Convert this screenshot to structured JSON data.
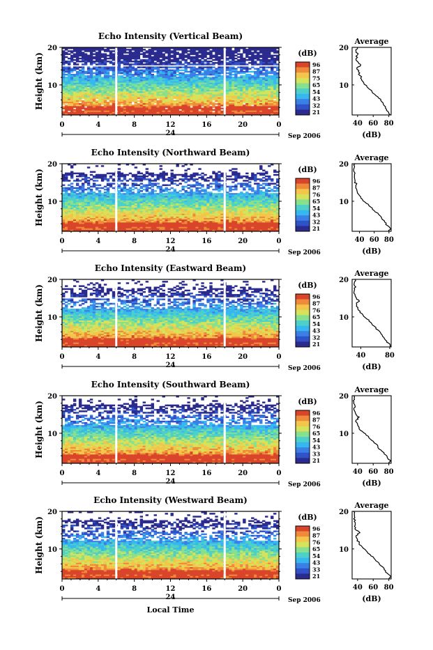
{
  "chart_data": [
    {
      "type": "heatmap",
      "title": "Echo Intensity (Vertical Beam)",
      "ylabel": "Height (km)",
      "xticks": [
        "0",
        "4",
        "8",
        "12",
        "16",
        "20",
        "0"
      ],
      "yticks": [
        "10",
        "20"
      ],
      "xlim": [
        0,
        24
      ],
      "ylim": [
        2,
        20
      ],
      "date_label": "24",
      "month_label": "Sep 2006",
      "colorbar": {
        "unit": "(dB)",
        "ticks": [
          "96",
          "87",
          "75",
          "65",
          "54",
          "43",
          "32",
          "21"
        ]
      },
      "gaps_hours": [
        6,
        18
      ],
      "average": {
        "title": "Average",
        "xlabel": "(dB)",
        "xticks": [
          "40",
          "60",
          "80"
        ],
        "xlim": [
          33,
          83
        ],
        "yticks": [
          "10",
          "20"
        ],
        "profile": [
          [
            82,
            2
          ],
          [
            80,
            2.6
          ],
          [
            77,
            3.5
          ],
          [
            74,
            4.5
          ],
          [
            71,
            5.5
          ],
          [
            67,
            6.5
          ],
          [
            62,
            7.5
          ],
          [
            58,
            8.5
          ],
          [
            52,
            9.5
          ],
          [
            48,
            10.5
          ],
          [
            45,
            11.5
          ],
          [
            43,
            12.5
          ],
          [
            41,
            13.5
          ],
          [
            39,
            14.5
          ],
          [
            44,
            15.2
          ],
          [
            41,
            16
          ],
          [
            38,
            17
          ],
          [
            40,
            18
          ],
          [
            38,
            19
          ],
          [
            40,
            20
          ]
        ]
      }
    },
    {
      "type": "heatmap",
      "title": "Echo Intensity (Northward Beam)",
      "ylabel": "Height (km)",
      "xticks": [
        "0",
        "4",
        "8",
        "12",
        "16",
        "20",
        "0"
      ],
      "yticks": [
        "10",
        "20"
      ],
      "xlim": [
        0,
        24
      ],
      "ylim": [
        2,
        20
      ],
      "date_label": "24",
      "month_label": "Sep 2006",
      "colorbar": {
        "unit": "(dB)",
        "ticks": [
          "96",
          "87",
          "76",
          "65",
          "54",
          "43",
          "32",
          "21"
        ]
      },
      "gaps_hours": [
        6,
        18
      ],
      "average": {
        "title": "Average",
        "xlabel": "(dB)",
        "xticks": [
          "40",
          "60",
          "80"
        ],
        "xlim": [
          30,
          83
        ],
        "yticks": [
          "10",
          "20"
        ],
        "profile": [
          [
            80,
            2
          ],
          [
            82,
            2.8
          ],
          [
            78,
            3.5
          ],
          [
            74,
            4.5
          ],
          [
            70,
            5.5
          ],
          [
            66,
            6.5
          ],
          [
            60,
            7.5
          ],
          [
            55,
            8.5
          ],
          [
            49,
            9.5
          ],
          [
            44,
            10.5
          ],
          [
            40,
            11.5
          ],
          [
            37,
            12.5
          ],
          [
            35,
            13.5
          ],
          [
            36,
            14.5
          ],
          [
            34,
            15.2
          ],
          [
            33,
            16.5
          ],
          [
            34,
            17.5
          ],
          [
            33,
            19
          ],
          [
            34,
            20
          ]
        ]
      }
    },
    {
      "type": "heatmap",
      "title": "Echo Intensity (Eastward Beam)",
      "ylabel": "Height (km)",
      "xticks": [
        "0",
        "4",
        "8",
        "12",
        "16",
        "20",
        "0"
      ],
      "yticks": [
        "10",
        "20"
      ],
      "xlim": [
        0,
        24
      ],
      "ylim": [
        2,
        20
      ],
      "date_label": "24",
      "month_label": "Sep 2006",
      "colorbar": {
        "unit": "(dB)",
        "ticks": [
          "96",
          "87",
          "76",
          "65",
          "54",
          "43",
          "32",
          "21"
        ]
      },
      "gaps_hours": [
        6,
        18
      ],
      "average": {
        "title": "Average",
        "xlabel": "(dB)",
        "xticks": [
          "40",
          "80"
        ],
        "xlim": [
          28,
          82
        ],
        "yticks": [
          "10",
          "20"
        ],
        "profile": [
          [
            82,
            2
          ],
          [
            80,
            2.8
          ],
          [
            76,
            3.5
          ],
          [
            72,
            4.5
          ],
          [
            68,
            5.5
          ],
          [
            64,
            6.5
          ],
          [
            59,
            7.5
          ],
          [
            54,
            8.5
          ],
          [
            48,
            9.5
          ],
          [
            43,
            10.5
          ],
          [
            39,
            11.5
          ],
          [
            36,
            12.5
          ],
          [
            34,
            13.5
          ],
          [
            38,
            14.2
          ],
          [
            34,
            15
          ],
          [
            32,
            16
          ],
          [
            31,
            17
          ],
          [
            33,
            18
          ],
          [
            31,
            19
          ],
          [
            32,
            20
          ]
        ]
      }
    },
    {
      "type": "heatmap",
      "title": "Echo Intensity (Southward Beam)",
      "ylabel": "Height (km)",
      "xticks": [
        "0",
        "4",
        "8",
        "12",
        "16",
        "20",
        "0"
      ],
      "yticks": [
        "10",
        "20"
      ],
      "xlim": [
        0,
        24
      ],
      "ylim": [
        2,
        20
      ],
      "date_label": "24",
      "month_label": "Sep 2006",
      "colorbar": {
        "unit": "(dB)",
        "ticks": [
          "96",
          "87",
          "76",
          "65",
          "54",
          "43",
          "33",
          "21"
        ]
      },
      "gaps_hours": [
        6,
        18
      ],
      "average": {
        "title": "Average",
        "xlabel": "(dB)",
        "xticks": [
          "40",
          "60",
          "80"
        ],
        "xlim": [
          33,
          83
        ],
        "yticks": [
          "10",
          "20"
        ],
        "profile": [
          [
            80,
            2
          ],
          [
            82,
            2.8
          ],
          [
            78,
            3.5
          ],
          [
            74,
            4.5
          ],
          [
            70,
            5.5
          ],
          [
            66,
            6.5
          ],
          [
            61,
            7.5
          ],
          [
            56,
            8.5
          ],
          [
            51,
            9.5
          ],
          [
            46,
            10.5
          ],
          [
            42,
            11.5
          ],
          [
            40,
            12.5
          ],
          [
            38,
            13.5
          ],
          [
            42,
            14.3
          ],
          [
            38,
            15
          ],
          [
            36,
            16
          ],
          [
            37,
            17
          ],
          [
            35,
            18
          ],
          [
            36,
            19
          ],
          [
            35,
            20
          ]
        ]
      }
    },
    {
      "type": "heatmap",
      "title": "Echo Intensity (Westward Beam)",
      "ylabel": "Height (km)",
      "xticks": [
        "0",
        "4",
        "8",
        "12",
        "16",
        "20",
        "0"
      ],
      "yticks": [
        "10",
        "20"
      ],
      "xlim": [
        0,
        24
      ],
      "ylim": [
        2,
        20
      ],
      "date_label": "24",
      "month_label": "Sep 2006",
      "xlabel": "Local Time",
      "colorbar": {
        "unit": "(dB)",
        "ticks": [
          "96",
          "87",
          "76",
          "65",
          "54",
          "43",
          "33",
          "21"
        ]
      },
      "gaps_hours": [
        6,
        18
      ],
      "average": {
        "title": "Average",
        "xlabel": "(dB)",
        "xticks": [
          "40",
          "60",
          "80"
        ],
        "xlim": [
          33,
          83
        ],
        "yticks": [
          "10",
          "20"
        ],
        "profile": [
          [
            80,
            2
          ],
          [
            82,
            2.8
          ],
          [
            78,
            3.5
          ],
          [
            74,
            4.5
          ],
          [
            70,
            5.5
          ],
          [
            66,
            6.5
          ],
          [
            61,
            7.5
          ],
          [
            56,
            8.5
          ],
          [
            51,
            9.5
          ],
          [
            46,
            10.5
          ],
          [
            42,
            11.5
          ],
          [
            40,
            12.5
          ],
          [
            38,
            13.5
          ],
          [
            43,
            14.3
          ],
          [
            38,
            15
          ],
          [
            36,
            16
          ],
          [
            37,
            17
          ],
          [
            35,
            18
          ],
          [
            36,
            19
          ],
          [
            35,
            20
          ]
        ]
      }
    }
  ],
  "colors": {
    "scale": [
      "#2b2b8f",
      "#2f52c8",
      "#3a7fe6",
      "#36b7f0",
      "#4dd0c8",
      "#86e08e",
      "#d6e25a",
      "#f3c54a",
      "#ef8a3a",
      "#d9452a"
    ],
    "gap": "#ffffff"
  }
}
